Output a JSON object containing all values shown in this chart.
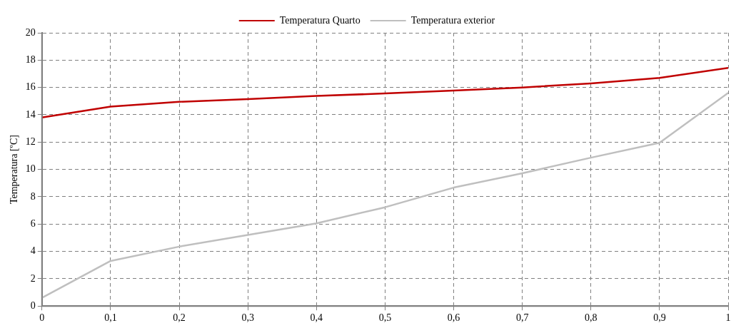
{
  "chart_data": {
    "type": "line",
    "ylabel": "Temperatura [ºC]",
    "x": [
      0,
      0.1,
      0.2,
      0.3,
      0.4,
      0.5,
      0.6,
      0.7,
      0.8,
      0.9,
      1
    ],
    "series": [
      {
        "name": "Temperatura Quarto",
        "color": "#c00000",
        "values": [
          13.8,
          14.6,
          14.95,
          15.15,
          15.38,
          15.56,
          15.77,
          16.0,
          16.3,
          16.7,
          17.43
        ]
      },
      {
        "name": "Temperatura exterior",
        "color": "#bfbfbf",
        "values": [
          0.6,
          3.3,
          4.35,
          5.2,
          6.05,
          7.23,
          8.67,
          9.72,
          10.86,
          11.95,
          15.6
        ]
      }
    ],
    "xlim": [
      0,
      1
    ],
    "xticks": [
      0,
      {
        "value": 0.1,
        "label": "0,1"
      },
      {
        "value": 0.2,
        "label": "0,2"
      },
      {
        "value": 0.3,
        "label": "0,3"
      },
      {
        "value": 0.4,
        "label": "0,4"
      },
      {
        "value": 0.5,
        "label": "0,5"
      },
      {
        "value": 0.6,
        "label": "0,6"
      },
      {
        "value": 0.7,
        "label": "0,7"
      },
      {
        "value": 0.8,
        "label": "0,8"
      },
      {
        "value": 0.9,
        "label": "0,9"
      },
      1
    ],
    "ylim": [
      0,
      20
    ],
    "yticks": [
      0,
      2,
      4,
      6,
      8,
      10,
      12,
      14,
      16,
      18,
      20
    ],
    "grid": true,
    "legend": "top",
    "marker": "none",
    "line_style": "solid"
  }
}
